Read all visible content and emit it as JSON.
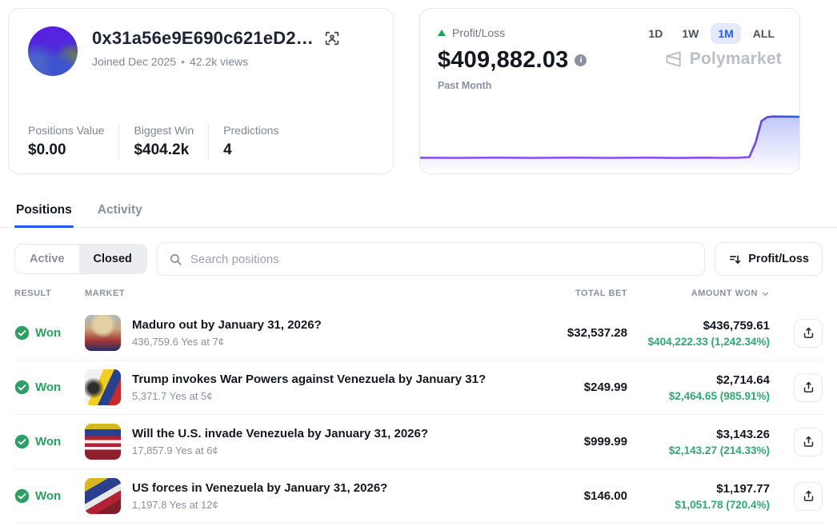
{
  "profile": {
    "address": "0x31a56e9E690c621eD2…",
    "joined": "Joined Dec 2025",
    "separator": "•",
    "views": "42.2k views",
    "stats": [
      {
        "label": "Positions Value",
        "value": "$0.00"
      },
      {
        "label": "Biggest Win",
        "value": "$404.2k"
      },
      {
        "label": "Predictions",
        "value": "4"
      }
    ]
  },
  "pnl": {
    "label": "Profit/Loss",
    "value": "$409,882.03",
    "period": "Past Month",
    "ranges": [
      "1D",
      "1W",
      "1M",
      "ALL"
    ],
    "selected_range": "1M",
    "brand": "Polymarket",
    "colors": {
      "line_purple": "#8d4de8",
      "line_blue": "#2563eb",
      "up_green": "#1fa05a",
      "accent_blue": "#2a5df0"
    },
    "chart": {
      "type": "line",
      "points": [
        [
          0,
          0.76
        ],
        [
          0.1,
          0.762
        ],
        [
          0.2,
          0.758
        ],
        [
          0.3,
          0.762
        ],
        [
          0.4,
          0.758
        ],
        [
          0.5,
          0.762
        ],
        [
          0.6,
          0.758
        ],
        [
          0.68,
          0.764
        ],
        [
          0.75,
          0.758
        ],
        [
          0.8,
          0.762
        ],
        [
          0.84,
          0.76
        ],
        [
          0.868,
          0.75
        ],
        [
          0.885,
          0.52
        ],
        [
          0.9,
          0.2
        ],
        [
          0.915,
          0.14
        ],
        [
          0.93,
          0.13
        ],
        [
          1,
          0.135
        ]
      ]
    }
  },
  "tabs": [
    {
      "label": "Positions"
    },
    {
      "label": "Activity"
    }
  ],
  "filters": {
    "segments": [
      {
        "label": "Active"
      },
      {
        "label": "Closed"
      }
    ],
    "selected_segment": "Closed",
    "search_placeholder": "Search positions",
    "sort_button": "Profit/Loss"
  },
  "table": {
    "headers": {
      "result": "RESULT",
      "market": "MARKET",
      "total_bet": "TOTAL BET",
      "amount_won": "AMOUNT WON"
    },
    "rows": [
      {
        "result": "Won",
        "title": "Maduro out by January 31, 2026?",
        "sub": "436,759.6 Yes at 7¢",
        "total_bet": "$32,537.28",
        "amount_won": "$436,759.61",
        "won_sub": "$404,222.33 (1,242.34%)"
      },
      {
        "result": "Won",
        "title": "Trump invokes War Powers against Venezuela by January 31?",
        "sub": "5,371.7 Yes at 5¢",
        "total_bet": "$249.99",
        "amount_won": "$2,714.64",
        "won_sub": "$2,464.65 (985.91%)"
      },
      {
        "result": "Won",
        "title": "Will the U.S. invade Venezuela by January 31, 2026?",
        "sub": "17,857.9 Yes at 6¢",
        "total_bet": "$999.99",
        "amount_won": "$3,143.26",
        "won_sub": "$2,143.27 (214.33%)"
      },
      {
        "result": "Won",
        "title": "US forces in Venezuela by January 31, 2026?",
        "sub": "1,197.8 Yes at 12¢",
        "total_bet": "$146.00",
        "amount_won": "$1,197.77",
        "won_sub": "$1,051.78 (720.4%)"
      }
    ]
  }
}
